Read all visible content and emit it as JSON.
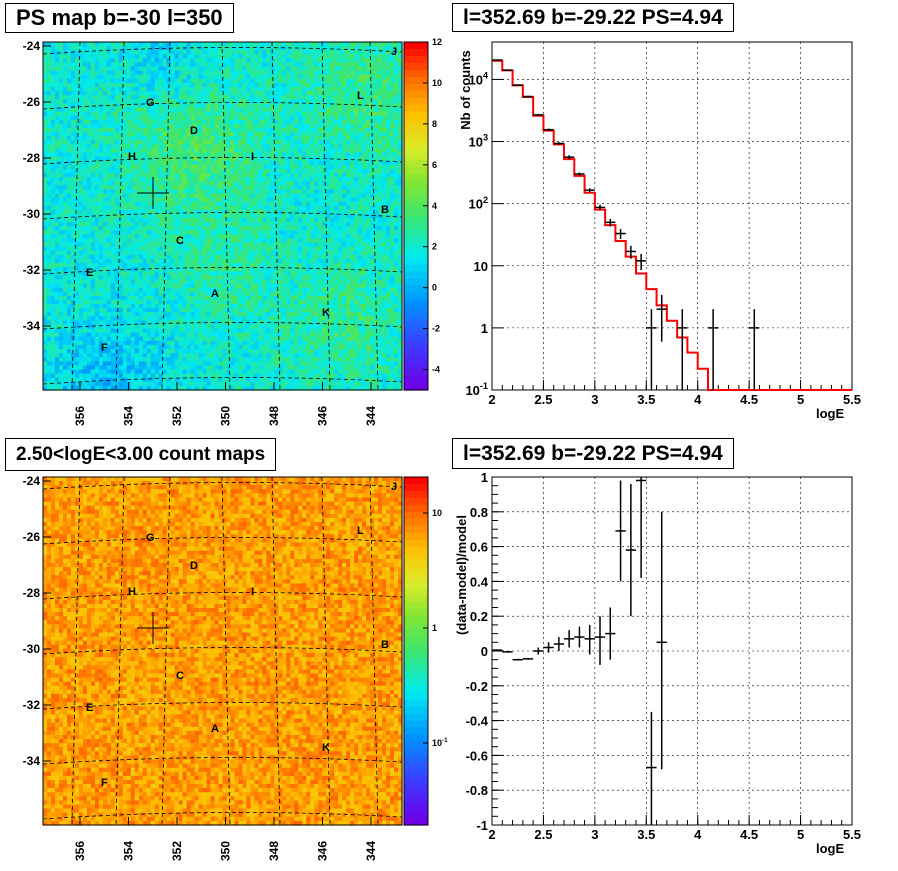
{
  "panels": {
    "tl_title": "PS map b=-30 l=350",
    "tr_title": "l=352.69 b=-29.22 PS=4.94",
    "bl_title": "2.50<logE<3.00 count maps",
    "br_title": "l=352.69 b=-29.22 PS=4.94"
  },
  "map_labels": [
    "J",
    "L",
    "G",
    "D",
    "H",
    "I",
    "B",
    "C",
    "E",
    "A",
    "K",
    "F"
  ],
  "colors": {
    "model_line": "#ff0000",
    "data": "#000000",
    "grid": "#000000"
  },
  "chart_data": [
    {
      "type": "heatmap",
      "title": "PS map b=-30 l=350",
      "x_ticks": [
        "356",
        "354",
        "352",
        "350",
        "348",
        "346",
        "344"
      ],
      "y_ticks": [
        "-24",
        "-26",
        "-28",
        "-30",
        "-32",
        "-34"
      ],
      "colorbar_ticks": [
        "12",
        "10",
        "8",
        "6",
        "4",
        "2",
        "0",
        "-2",
        "-4"
      ],
      "colorbar_range": [
        -5,
        12
      ],
      "marker": {
        "l": 352.69,
        "b": -29.22
      }
    },
    {
      "type": "line",
      "title": "l=352.69 b=-29.22 PS=4.94",
      "xlabel": "logE",
      "ylabel": "Nb of counts",
      "yscale": "log",
      "xlim": [
        2,
        5.5
      ],
      "ylim": [
        0.1,
        40000
      ],
      "x_ticks": [
        "2",
        "2.5",
        "3",
        "3.5",
        "4",
        "4.5",
        "5",
        "5.5"
      ],
      "y_ticks": [
        "10^{-1}",
        "1",
        "10",
        "10^{2}",
        "10^{3}",
        "10^{4}"
      ],
      "grid": true,
      "model_bins": [
        {
          "lo": 2.0,
          "hi": 2.1,
          "v": 20000
        },
        {
          "lo": 2.1,
          "hi": 2.2,
          "v": 14000
        },
        {
          "lo": 2.2,
          "hi": 2.3,
          "v": 8000
        },
        {
          "lo": 2.3,
          "hi": 2.4,
          "v": 5200
        },
        {
          "lo": 2.4,
          "hi": 2.5,
          "v": 2600
        },
        {
          "lo": 2.5,
          "hi": 2.6,
          "v": 1500
        },
        {
          "lo": 2.6,
          "hi": 2.7,
          "v": 900
        },
        {
          "lo": 2.7,
          "hi": 2.8,
          "v": 520
        },
        {
          "lo": 2.8,
          "hi": 2.9,
          "v": 280
        },
        {
          "lo": 2.9,
          "hi": 3.0,
          "v": 150
        },
        {
          "lo": 3.0,
          "hi": 3.1,
          "v": 80
        },
        {
          "lo": 3.1,
          "hi": 3.2,
          "v": 45
        },
        {
          "lo": 3.2,
          "hi": 3.3,
          "v": 25
        },
        {
          "lo": 3.3,
          "hi": 3.4,
          "v": 14
        },
        {
          "lo": 3.4,
          "hi": 3.5,
          "v": 7.5
        },
        {
          "lo": 3.5,
          "hi": 3.6,
          "v": 4.2
        },
        {
          "lo": 3.6,
          "hi": 3.7,
          "v": 2.3
        },
        {
          "lo": 3.7,
          "hi": 3.8,
          "v": 1.3
        },
        {
          "lo": 3.8,
          "hi": 3.9,
          "v": 0.7
        },
        {
          "lo": 3.9,
          "hi": 4.0,
          "v": 0.4
        },
        {
          "lo": 4.0,
          "hi": 4.1,
          "v": 0.22
        },
        {
          "lo": 4.1,
          "hi": 5.5,
          "v": 0.1
        }
      ],
      "data_points": [
        {
          "x": 2.05,
          "y": 20500,
          "lo": 20100,
          "hi": 20900
        },
        {
          "x": 2.15,
          "y": 14100,
          "lo": 13800,
          "hi": 14400
        },
        {
          "x": 2.25,
          "y": 8100,
          "lo": 7900,
          "hi": 8300
        },
        {
          "x": 2.35,
          "y": 5300,
          "lo": 5150,
          "hi": 5450
        },
        {
          "x": 2.45,
          "y": 2680,
          "lo": 2580,
          "hi": 2780
        },
        {
          "x": 2.55,
          "y": 1550,
          "lo": 1480,
          "hi": 1620
        },
        {
          "x": 2.65,
          "y": 930,
          "lo": 880,
          "hi": 980
        },
        {
          "x": 2.75,
          "y": 560,
          "lo": 520,
          "hi": 600
        },
        {
          "x": 2.85,
          "y": 300,
          "lo": 283,
          "hi": 317
        },
        {
          "x": 2.95,
          "y": 165,
          "lo": 153,
          "hi": 177
        },
        {
          "x": 3.05,
          "y": 87,
          "lo": 78,
          "hi": 96
        },
        {
          "x": 3.15,
          "y": 50,
          "lo": 43,
          "hi": 57
        },
        {
          "x": 3.25,
          "y": 33,
          "lo": 27,
          "hi": 39
        },
        {
          "x": 3.35,
          "y": 17,
          "lo": 13,
          "hi": 21
        },
        {
          "x": 3.45,
          "y": 12,
          "lo": 8.5,
          "hi": 15.5
        },
        {
          "x": 3.55,
          "y": 1,
          "lo": 0.1,
          "hi": 2
        },
        {
          "x": 3.65,
          "y": 2,
          "lo": 0.6,
          "hi": 3.4
        },
        {
          "x": 3.85,
          "y": 1,
          "lo": 0.1,
          "hi": 2
        },
        {
          "x": 4.15,
          "y": 1,
          "lo": 0.1,
          "hi": 2
        },
        {
          "x": 4.55,
          "y": 1,
          "lo": 0.1,
          "hi": 2
        }
      ]
    },
    {
      "type": "heatmap",
      "title": "2.50<logE<3.00 count maps",
      "x_ticks": [
        "356",
        "354",
        "352",
        "350",
        "348",
        "346",
        "344"
      ],
      "y_ticks": [
        "-24",
        "-26",
        "-28",
        "-30",
        "-32",
        "-34"
      ],
      "colorbar_ticks": [
        "10",
        "1",
        "10^{-1}"
      ],
      "colorbar_scale": "log",
      "marker": {
        "l": 352.69,
        "b": -29.22
      }
    },
    {
      "type": "scatter",
      "title": "l=352.69 b=-29.22 PS=4.94",
      "xlabel": "logE",
      "ylabel": "(data-model)/model",
      "xlim": [
        2,
        5.5
      ],
      "ylim": [
        -1,
        1
      ],
      "x_ticks": [
        "2",
        "2.5",
        "3",
        "3.5",
        "4",
        "4.5",
        "5",
        "5.5"
      ],
      "y_ticks": [
        "-1",
        "-0.8",
        "-0.6",
        "-0.4",
        "-0.2",
        "0",
        "0.2",
        "0.4",
        "0.6",
        "0.8",
        "1"
      ],
      "grid": true,
      "data_points": [
        {
          "x": 2.05,
          "y": 0.005,
          "lo": 0.0,
          "hi": 0.01
        },
        {
          "x": 2.15,
          "y": -0.005,
          "lo": -0.01,
          "hi": 0.0
        },
        {
          "x": 2.25,
          "y": -0.05,
          "lo": -0.055,
          "hi": -0.045
        },
        {
          "x": 2.35,
          "y": -0.045,
          "lo": -0.05,
          "hi": -0.04
        },
        {
          "x": 2.45,
          "y": 0.0,
          "lo": -0.02,
          "hi": 0.02
        },
        {
          "x": 2.55,
          "y": 0.02,
          "lo": -0.01,
          "hi": 0.05
        },
        {
          "x": 2.65,
          "y": 0.04,
          "lo": 0.0,
          "hi": 0.08
        },
        {
          "x": 2.75,
          "y": 0.07,
          "lo": 0.02,
          "hi": 0.12
        },
        {
          "x": 2.85,
          "y": 0.08,
          "lo": 0.02,
          "hi": 0.14
        },
        {
          "x": 2.95,
          "y": 0.07,
          "lo": -0.02,
          "hi": 0.15
        },
        {
          "x": 3.05,
          "y": 0.08,
          "lo": -0.08,
          "hi": 0.2
        },
        {
          "x": 3.15,
          "y": 0.1,
          "lo": -0.05,
          "hi": 0.25
        },
        {
          "x": 3.25,
          "y": 0.69,
          "lo": 0.4,
          "hi": 0.98
        },
        {
          "x": 3.35,
          "y": 0.58,
          "lo": 0.2,
          "hi": 0.96
        },
        {
          "x": 3.45,
          "y": 0.98,
          "lo": 0.42,
          "hi": 1.0
        },
        {
          "x": 3.55,
          "y": -0.67,
          "lo": -1.0,
          "hi": -0.35
        },
        {
          "x": 3.65,
          "y": 0.05,
          "lo": -0.68,
          "hi": 0.8
        }
      ]
    }
  ]
}
